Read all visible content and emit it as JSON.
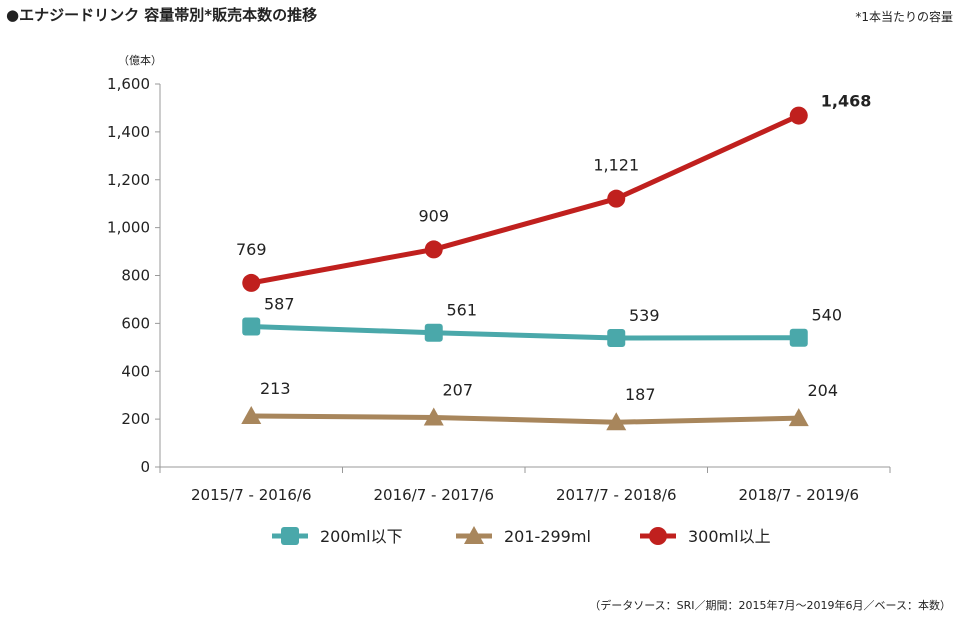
{
  "header": {
    "title": "●エナジードリンク 容量帯別*販売本数の推移",
    "note": "*1本当たりの容量"
  },
  "footer": {
    "source": "（データソース：SRI／期間：2015年7月～2019年6月／ベース：本数）"
  },
  "chart_data": {
    "type": "line",
    "title": "",
    "xlabel": "",
    "ylabel": "",
    "y_unit": "（億本）",
    "ylim": [
      0,
      1600
    ],
    "y_ticks": [
      0,
      200,
      400,
      600,
      800,
      1000,
      1200,
      1400,
      1600
    ],
    "y_tick_labels": [
      "0",
      "200",
      "400",
      "600",
      "800",
      "1,000",
      "1,200",
      "1,400",
      "1,600"
    ],
    "categories": [
      "2015/7 - 2016/6",
      "2016/7 - 2017/6",
      "2017/7 - 2018/6",
      "2018/7 - 2019/6"
    ],
    "grid": false,
    "legend_position": "bottom",
    "series": [
      {
        "name": "200ml以下",
        "marker": "square",
        "color": "#4aa8aa",
        "values": [
          587,
          561,
          539,
          540
        ],
        "labels": [
          "587",
          "561",
          "539",
          "540"
        ]
      },
      {
        "name": "201-299ml",
        "marker": "triangle",
        "color": "#a8865c",
        "values": [
          213,
          207,
          187,
          204
        ],
        "labels": [
          "213",
          "207",
          "187",
          "204"
        ]
      },
      {
        "name": "300ml以上",
        "marker": "circle",
        "color": "#c0201e",
        "values": [
          769,
          909,
          1121,
          1468
        ],
        "labels": [
          "769",
          "909",
          "1,121",
          "1,468"
        ]
      }
    ]
  }
}
